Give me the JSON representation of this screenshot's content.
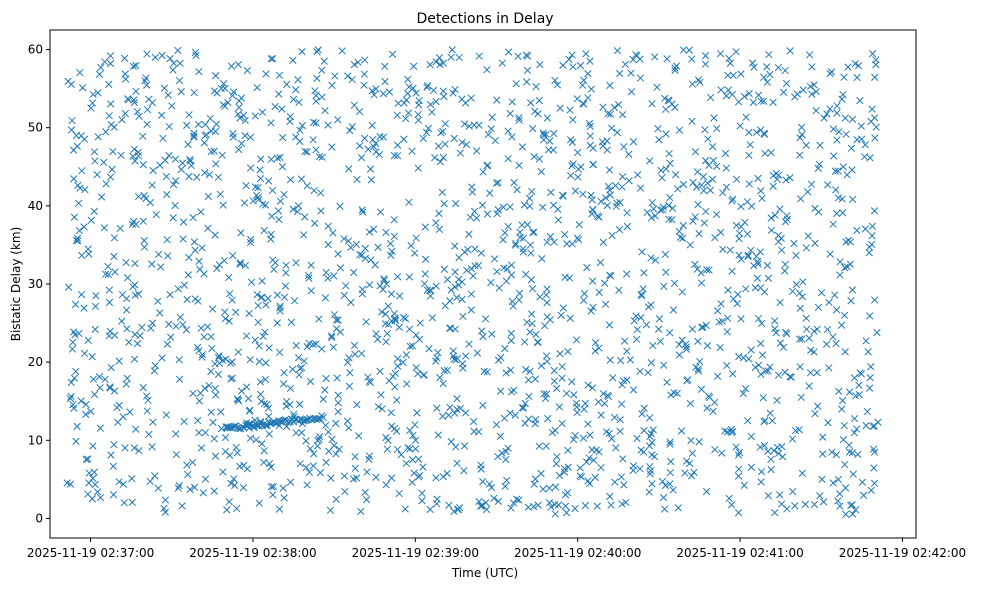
{
  "chart_data": {
    "type": "scatter",
    "title": "Detections in Delay",
    "xlabel": "Time (UTC)",
    "ylabel": "Bistatic Delay (km)",
    "x_start": "2025-11-19 02:36:51",
    "x_end": "2025-11-19 02:41:51",
    "xlim": [
      "2025-11-19 02:36:45",
      "2025-11-19 02:42:05"
    ],
    "ylim": [
      -2.5,
      62.5
    ],
    "x_ticks": [
      "2025-11-19 02:37:00",
      "2025-11-19 02:38:00",
      "2025-11-19 02:39:00",
      "2025-11-19 02:40:00",
      "2025-11-19 02:41:00",
      "2025-11-19 02:42:00"
    ],
    "y_ticks": [
      0,
      10,
      20,
      30,
      40,
      50,
      60
    ],
    "marker": "x",
    "color": "#1f77b4",
    "grid": false,
    "clutter": {
      "description": "uniform random clutter detections",
      "count": 2000,
      "time_range": [
        "2025-11-19 02:36:51",
        "2025-11-19 02:41:51"
      ],
      "delay_range": [
        0.5,
        60
      ]
    },
    "target_track": {
      "count": 60,
      "start": {
        "time": "2025-11-19 02:37:50",
        "delay": 11.5
      },
      "end": {
        "time": "2025-11-19 02:38:26",
        "delay": 13.0
      }
    }
  }
}
